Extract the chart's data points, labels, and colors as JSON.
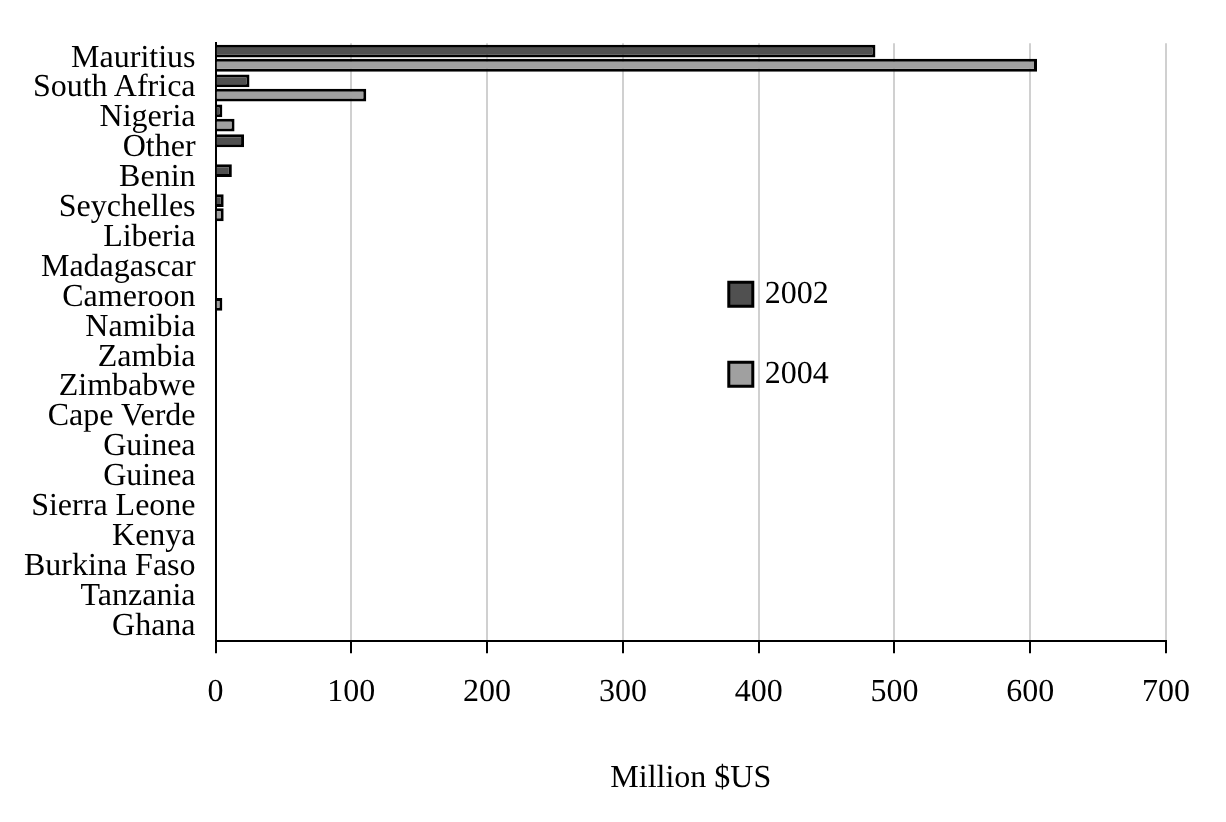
{
  "chart_data": {
    "type": "bar",
    "orientation": "horizontal",
    "xlabel": "Million $US",
    "categories": [
      "Mauritius",
      "South Africa",
      "Nigeria",
      "Other",
      "Benin",
      "Seychelles",
      "Liberia",
      "Madagascar",
      "Cameroon",
      "Namibia",
      "Zambia",
      "Zimbabwe",
      "Cape Verde",
      "Guinea",
      "Guinea",
      "Sierra Leone",
      "Kenya",
      "Burkina Faso",
      "Tanzania",
      "Ghana"
    ],
    "series": [
      {
        "name": "2002",
        "color": "#505050",
        "values": [
          486,
          25,
          5,
          21,
          12,
          6,
          0,
          0,
          0,
          0,
          0,
          0,
          0,
          0,
          0,
          0,
          0,
          0,
          0,
          0
        ]
      },
      {
        "name": "2004",
        "color": "#a0a0a0",
        "values": [
          605,
          111,
          14,
          null,
          null,
          6,
          0,
          0,
          5,
          0,
          0,
          0,
          0,
          0,
          0,
          0,
          0,
          0,
          0,
          0
        ]
      }
    ],
    "xlim": [
      0,
      700
    ],
    "xticks": [
      0,
      100,
      200,
      300,
      400,
      500,
      600,
      700
    ],
    "grid": "x",
    "legend": "right"
  }
}
